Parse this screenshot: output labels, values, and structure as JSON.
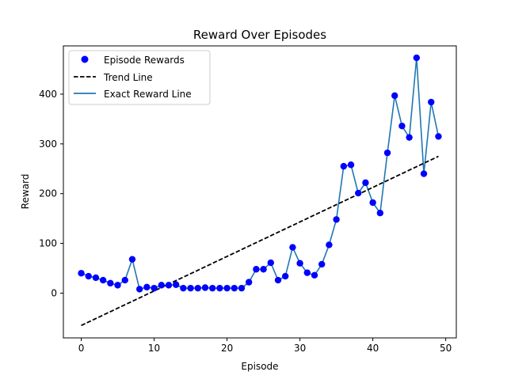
{
  "chart_data": {
    "type": "line",
    "title": "Reward Over Episodes",
    "xlabel": "Episode",
    "ylabel": "Reward",
    "xlim": [
      -2.45,
      51.45
    ],
    "ylim": [
      -90,
      497
    ],
    "x_ticks": [
      0,
      10,
      20,
      30,
      40,
      50
    ],
    "y_ticks": [
      0,
      100,
      200,
      300,
      400
    ],
    "grid": false,
    "legend_position": "top-left",
    "colors": {
      "points": "#0000ff",
      "trend": "#000000",
      "exact_line": "#1f77b4"
    },
    "series": [
      {
        "name": "Episode Rewards",
        "kind": "scatter",
        "x": [
          0,
          1,
          2,
          3,
          4,
          5,
          6,
          7,
          8,
          9,
          10,
          11,
          12,
          13,
          14,
          15,
          16,
          17,
          18,
          19,
          20,
          21,
          22,
          23,
          24,
          25,
          26,
          27,
          28,
          29,
          30,
          31,
          32,
          33,
          34,
          35,
          36,
          37,
          38,
          39,
          40,
          41,
          42,
          43,
          44,
          45,
          46,
          47,
          48,
          49
        ],
        "y": [
          40,
          34,
          31,
          26,
          20,
          16,
          26,
          68,
          8,
          12,
          10,
          16,
          16,
          17,
          10,
          10,
          10,
          11,
          10,
          10,
          10,
          10,
          10,
          22,
          48,
          48,
          61,
          26,
          34,
          92,
          60,
          41,
          36,
          58,
          97,
          148,
          255,
          258,
          201,
          222,
          182,
          161,
          282,
          397,
          336,
          313,
          473,
          240,
          384,
          315
        ]
      },
      {
        "name": "Trend Line",
        "kind": "line-dashed",
        "x": [
          0,
          49
        ],
        "y": [
          -65,
          275
        ]
      },
      {
        "name": "Exact Reward Line",
        "kind": "line",
        "x": [
          0,
          1,
          2,
          3,
          4,
          5,
          6,
          7,
          8,
          9,
          10,
          11,
          12,
          13,
          14,
          15,
          16,
          17,
          18,
          19,
          20,
          21,
          22,
          23,
          24,
          25,
          26,
          27,
          28,
          29,
          30,
          31,
          32,
          33,
          34,
          35,
          36,
          37,
          38,
          39,
          40,
          41,
          42,
          43,
          44,
          45,
          46,
          47,
          48,
          49
        ],
        "y": [
          40,
          34,
          31,
          26,
          20,
          16,
          26,
          68,
          8,
          12,
          10,
          16,
          16,
          17,
          10,
          10,
          10,
          11,
          10,
          10,
          10,
          10,
          10,
          22,
          48,
          48,
          61,
          26,
          34,
          92,
          60,
          41,
          36,
          58,
          97,
          148,
          255,
          258,
          201,
          222,
          182,
          161,
          282,
          397,
          336,
          313,
          473,
          240,
          384,
          315
        ]
      }
    ]
  }
}
